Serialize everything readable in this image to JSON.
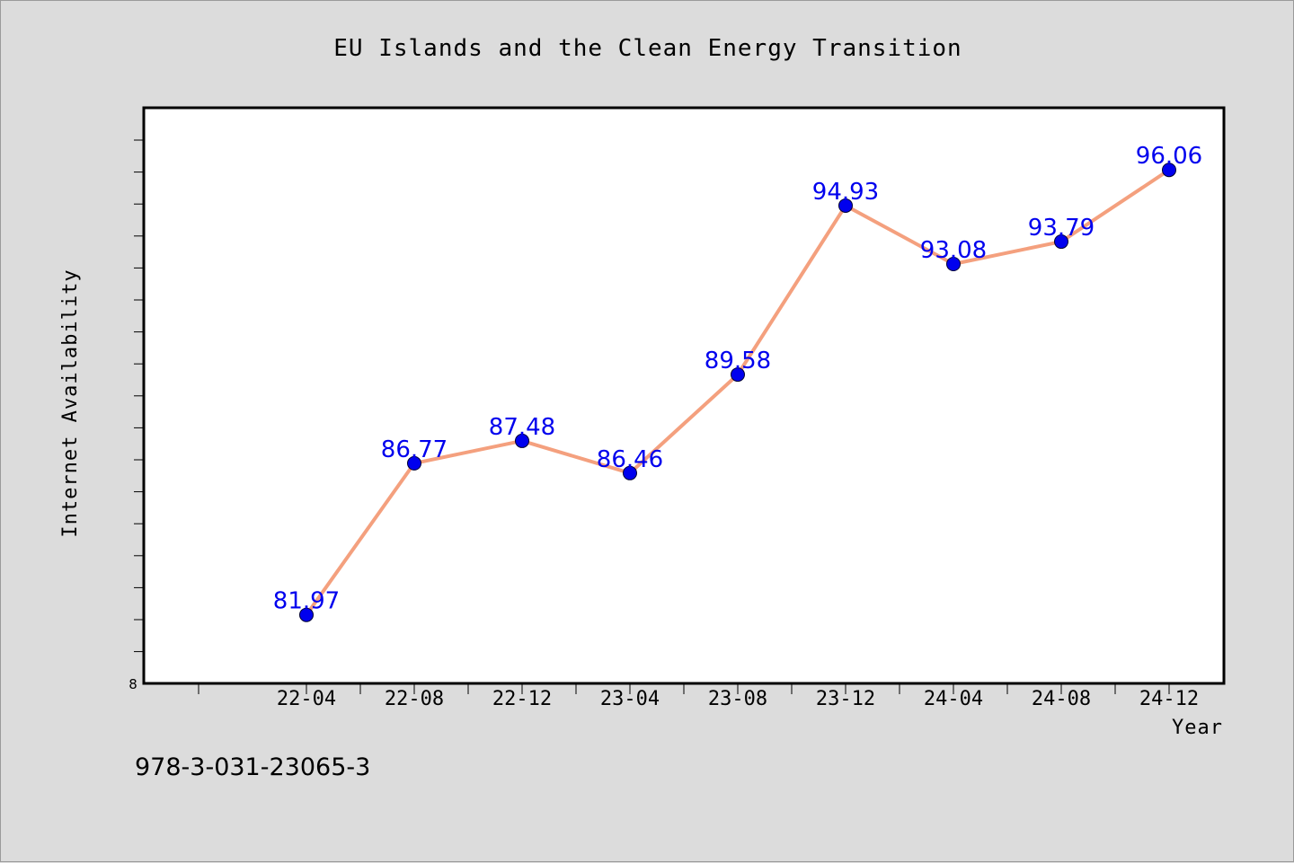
{
  "chart_data": {
    "type": "line",
    "title": "EU Islands and the Clean Energy Transition",
    "xlabel": "Year",
    "ylabel": "Internet Availability",
    "categories": [
      "22-04",
      "22-08",
      "22-12",
      "23-04",
      "23-08",
      "23-12",
      "24-04",
      "24-08",
      "24-12"
    ],
    "series": [
      {
        "values": [
          81.97,
          86.77,
          87.48,
          86.46,
          89.58,
          94.93,
          93.08,
          93.79,
          96.06
        ]
      }
    ],
    "ylim": [
      79.8,
      98.0
    ],
    "y_min_tick_label": "8",
    "grid": false,
    "legend": "none",
    "line_color": "#f4a07e",
    "marker_color": "#0000ee",
    "label_color": "#0000ee"
  },
  "footer": {
    "isbn": "978-3-031-23065-3"
  }
}
